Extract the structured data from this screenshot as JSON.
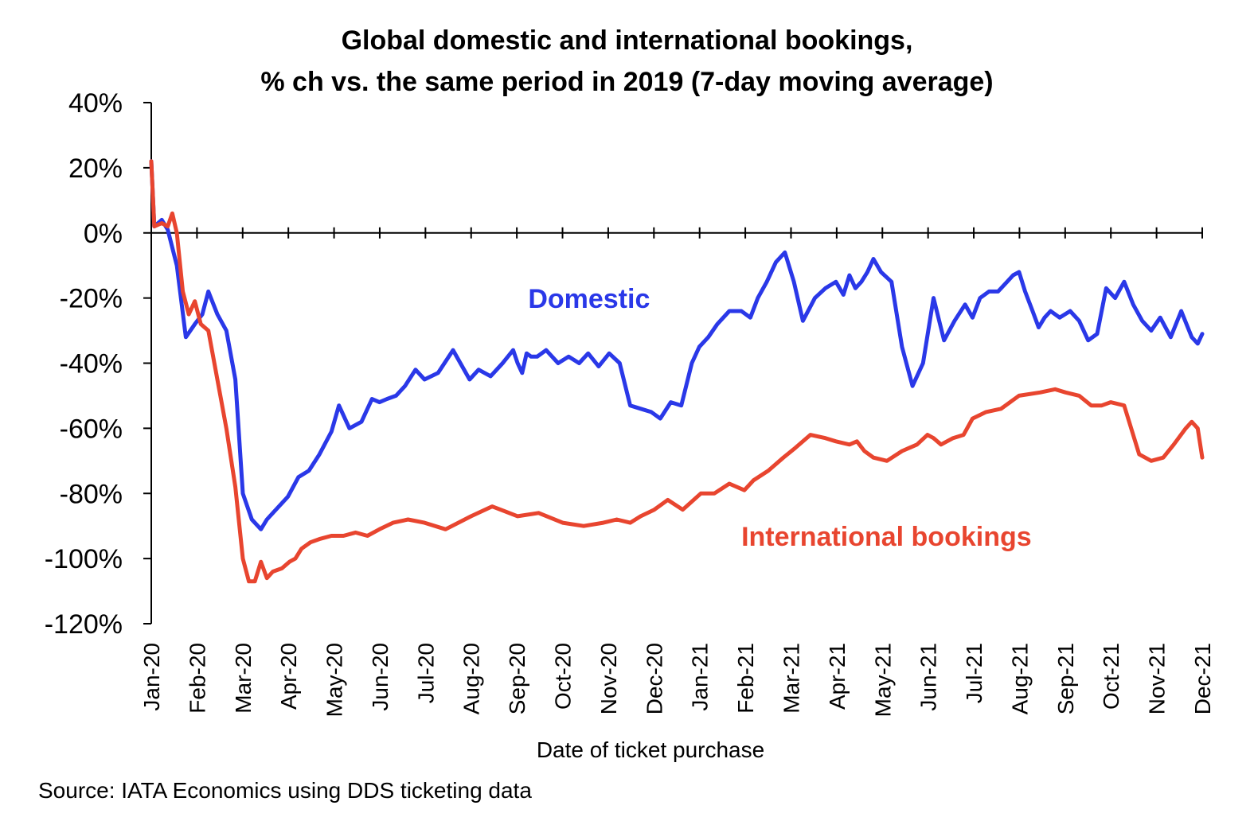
{
  "title_line1": "Global domestic and international bookings,",
  "title_line2": "% ch vs. the same period in 2019 (7-day moving average)",
  "source": "Source: IATA Economics using DDS ticketing data",
  "chart_data": {
    "type": "line",
    "xlabel": "Date of ticket purchase",
    "ylabel": "",
    "ylim": [
      -120,
      40
    ],
    "yticks": [
      40,
      20,
      0,
      -20,
      -40,
      -60,
      -80,
      -100,
      -120
    ],
    "ytick_labels": [
      "40%",
      "20%",
      "0%",
      "-20%",
      "-40%",
      "-60%",
      "-80%",
      "-100%",
      "-120%"
    ],
    "x_months": [
      "Jan-20",
      "Feb-20",
      "Mar-20",
      "Apr-20",
      "May-20",
      "Jun-20",
      "Jul-20",
      "Aug-20",
      "Sep-20",
      "Oct-20",
      "Nov-20",
      "Dec-20",
      "Jan-21",
      "Feb-21",
      "Mar-21",
      "Apr-21",
      "May-21",
      "Jun-21",
      "Jul-21",
      "Aug-21",
      "Sep-21",
      "Oct-21",
      "Nov-21",
      "Dec-21"
    ],
    "grid": false,
    "series": [
      {
        "name": "Domestic",
        "color": "#2a38e8",
        "x": [
          "2020-01-01",
          "2020-01-03",
          "2020-01-08",
          "2020-01-12",
          "2020-01-18",
          "2020-01-24",
          "2020-01-30",
          "2020-02-04",
          "2020-02-08",
          "2020-02-14",
          "2020-02-20",
          "2020-02-26",
          "2020-03-02",
          "2020-03-08",
          "2020-03-14",
          "2020-03-18",
          "2020-03-22",
          "2020-03-26",
          "2020-04-01",
          "2020-04-08",
          "2020-04-15",
          "2020-04-22",
          "2020-04-30",
          "2020-05-05",
          "2020-05-12",
          "2020-05-20",
          "2020-05-27",
          "2020-06-01",
          "2020-06-06",
          "2020-06-12",
          "2020-06-18",
          "2020-06-25",
          "2020-07-01",
          "2020-07-10",
          "2020-07-20",
          "2020-07-31",
          "2020-08-06",
          "2020-08-14",
          "2020-08-22",
          "2020-08-29",
          "2020-09-01",
          "2020-09-04",
          "2020-09-07",
          "2020-09-10",
          "2020-09-14",
          "2020-09-20",
          "2020-09-28",
          "2020-10-05",
          "2020-10-12",
          "2020-10-18",
          "2020-10-25",
          "2020-11-01",
          "2020-11-08",
          "2020-11-15",
          "2020-11-22",
          "2020-11-29",
          "2020-12-05",
          "2020-12-12",
          "2020-12-19",
          "2020-12-26",
          "2020-12-31",
          "2021-01-06",
          "2021-01-12",
          "2021-01-20",
          "2021-01-28",
          "2021-02-03",
          "2021-02-08",
          "2021-02-14",
          "2021-02-20",
          "2021-02-26",
          "2021-03-04",
          "2021-03-10",
          "2021-03-18",
          "2021-03-25",
          "2021-04-01",
          "2021-04-06",
          "2021-04-10",
          "2021-04-14",
          "2021-04-18",
          "2021-04-22",
          "2021-04-26",
          "2021-05-01",
          "2021-05-08",
          "2021-05-15",
          "2021-05-22",
          "2021-05-29",
          "2021-06-05",
          "2021-06-12",
          "2021-06-19",
          "2021-06-26",
          "2021-07-01",
          "2021-07-06",
          "2021-07-12",
          "2021-07-18",
          "2021-07-24",
          "2021-07-28",
          "2021-08-01",
          "2021-08-05",
          "2021-08-10",
          "2021-08-14",
          "2021-08-18",
          "2021-08-22",
          "2021-08-28",
          "2021-09-04",
          "2021-09-10",
          "2021-09-16",
          "2021-09-22",
          "2021-09-28",
          "2021-10-04",
          "2021-10-10",
          "2021-10-16",
          "2021-10-22",
          "2021-10-28",
          "2021-11-03",
          "2021-11-10",
          "2021-11-17",
          "2021-11-24",
          "2021-11-28",
          "2021-12-01"
        ],
        "values": [
          22,
          2,
          4,
          1,
          -10,
          -32,
          -28,
          -25,
          -18,
          -25,
          -30,
          -45,
          -80,
          -88,
          -91,
          -88,
          -86,
          -84,
          -81,
          -75,
          -73,
          -68,
          -61,
          -53,
          -60,
          -58,
          -51,
          -52,
          -51,
          -50,
          -47,
          -42,
          -45,
          -43,
          -36,
          -45,
          -42,
          -44,
          -40,
          -36,
          -40,
          -43,
          -37,
          -38,
          -38,
          -36,
          -40,
          -38,
          -40,
          -37,
          -41,
          -37,
          -40,
          -53,
          -54,
          -55,
          -57,
          -52,
          -53,
          -40,
          -35,
          -32,
          -28,
          -24,
          -24,
          -26,
          -20,
          -15,
          -9,
          -6,
          -15,
          -27,
          -20,
          -17,
          -15,
          -19,
          -13,
          -17,
          -15,
          -12,
          -8,
          -12,
          -15,
          -35,
          -47,
          -40,
          -20,
          -33,
          -27,
          -22,
          -26,
          -20,
          -18,
          -18,
          -15,
          -13,
          -12,
          -18,
          -24,
          -29,
          -26,
          -24,
          -26,
          -24,
          -27,
          -33,
          -31,
          -17,
          -20,
          -15,
          -22,
          -27,
          -30,
          -26,
          -32,
          -24,
          -32,
          -34,
          -31
        ],
        "label_position": {
          "x": "2020-09-08",
          "y": -23
        }
      },
      {
        "name": "International bookings",
        "color": "#e8452f",
        "x": [
          "2020-01-01",
          "2020-01-03",
          "2020-01-08",
          "2020-01-12",
          "2020-01-15",
          "2020-01-18",
          "2020-01-22",
          "2020-01-26",
          "2020-01-30",
          "2020-02-03",
          "2020-02-08",
          "2020-02-14",
          "2020-02-20",
          "2020-02-26",
          "2020-03-02",
          "2020-03-06",
          "2020-03-10",
          "2020-03-14",
          "2020-03-18",
          "2020-03-22",
          "2020-03-28",
          "2020-04-02",
          "2020-04-06",
          "2020-04-10",
          "2020-04-16",
          "2020-04-22",
          "2020-04-30",
          "2020-05-08",
          "2020-05-16",
          "2020-05-24",
          "2020-06-01",
          "2020-06-10",
          "2020-06-20",
          "2020-07-01",
          "2020-07-15",
          "2020-08-01",
          "2020-08-15",
          "2020-09-01",
          "2020-09-15",
          "2020-10-01",
          "2020-10-15",
          "2020-10-28",
          "2020-11-06",
          "2020-11-15",
          "2020-11-22",
          "2020-12-01",
          "2020-12-10",
          "2020-12-20",
          "2021-01-01",
          "2021-01-10",
          "2021-01-20",
          "2021-01-30",
          "2021-02-05",
          "2021-02-15",
          "2021-02-25",
          "2021-03-05",
          "2021-03-15",
          "2021-03-25",
          "2021-04-01",
          "2021-04-10",
          "2021-04-15",
          "2021-04-20",
          "2021-04-26",
          "2021-05-05",
          "2021-05-15",
          "2021-05-25",
          "2021-06-01",
          "2021-06-05",
          "2021-06-10",
          "2021-06-18",
          "2021-06-25",
          "2021-07-01",
          "2021-07-10",
          "2021-07-20",
          "2021-08-01",
          "2021-08-15",
          "2021-08-25",
          "2021-09-01",
          "2021-09-10",
          "2021-09-18",
          "2021-09-25",
          "2021-10-01",
          "2021-10-10",
          "2021-10-20",
          "2021-10-28",
          "2021-11-05",
          "2021-11-12",
          "2021-11-20",
          "2021-11-24",
          "2021-11-28",
          "2021-12-01"
        ],
        "values": [
          22,
          2,
          3,
          2,
          6,
          0,
          -18,
          -25,
          -21,
          -28,
          -30,
          -45,
          -60,
          -78,
          -100,
          -107,
          -107,
          -101,
          -106,
          -104,
          -103,
          -101,
          -100,
          -97,
          -95,
          -94,
          -93,
          -93,
          -92,
          -93,
          -91,
          -89,
          -88,
          -89,
          -91,
          -87,
          -84,
          -87,
          -86,
          -89,
          -90,
          -89,
          -88,
          -89,
          -87,
          -85,
          -82,
          -85,
          -80,
          -80,
          -77,
          -79,
          -76,
          -73,
          -69,
          -66,
          -62,
          -63,
          -64,
          -65,
          -64,
          -67,
          -69,
          -70,
          -67,
          -65,
          -62,
          -63,
          -65,
          -63,
          -62,
          -57,
          -55,
          -54,
          -50,
          -49,
          -48,
          -49,
          -50,
          -53,
          -53,
          -52,
          -53,
          -68,
          -70,
          -69,
          -65,
          -60,
          -58,
          -60,
          -69
        ],
        "label_position": {
          "x": "2021-01-28",
          "y": -96
        }
      }
    ]
  }
}
